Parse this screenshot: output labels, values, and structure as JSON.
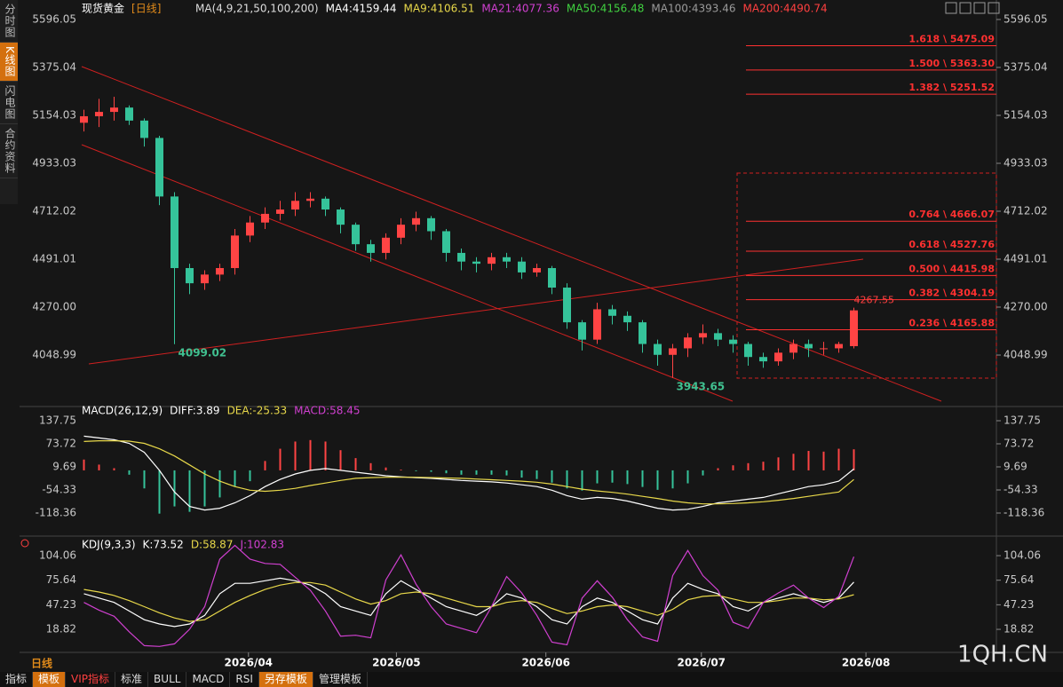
{
  "sidebar": [
    "分时图",
    "K线图",
    "闪电图",
    "合约资料"
  ],
  "period_label": "日线",
  "toolbar": [
    "指标",
    "模板",
    "VIP指标",
    "标准",
    "BULL",
    "MACD",
    "RSI",
    "另存模板",
    "管理模板"
  ],
  "watermark": "1QH.CN",
  "chart_data": [
    {
      "type": "candlestick",
      "title": "现货黄金",
      "period": "[日线]",
      "legend": [
        {
          "text": "MA(4,9,21,50,100,200)",
          "color": "#dddddd"
        },
        {
          "text": "MA4:4159.44",
          "color": "#ffffff"
        },
        {
          "text": "MA9:4106.51",
          "color": "#e8d84a"
        },
        {
          "text": "MA21:4077.36",
          "color": "#d040d0"
        },
        {
          "text": "MA50:4156.48",
          "color": "#40d040"
        },
        {
          "text": "MA100:4393.46",
          "color": "#9a9a9a"
        },
        {
          "text": "MA200:4490.74",
          "color": "#ff4040"
        }
      ],
      "up_color": "#ff4444",
      "down_color": "#35c39a",
      "open": [
        5120,
        5150,
        5170,
        5190,
        5130,
        5050,
        4780,
        4450,
        4380,
        4420,
        4450,
        4600,
        4660,
        4700,
        4720,
        4760,
        4770,
        4720,
        4650,
        4560,
        4520,
        4590,
        4650,
        4680,
        4620,
        4520,
        4480,
        4470,
        4500,
        4480,
        4430,
        4450,
        4360,
        4200,
        4120,
        4260,
        4230,
        4200,
        4100,
        4050,
        4080,
        4130,
        4150,
        4120,
        4100,
        4040,
        4020,
        4060,
        4100,
        4080,
        4080,
        4090
      ],
      "high": [
        5180,
        5230,
        5240,
        5200,
        5140,
        5060,
        4800,
        4470,
        4440,
        4470,
        4630,
        4690,
        4730,
        4760,
        4800,
        4800,
        4780,
        4730,
        4660,
        4580,
        4610,
        4680,
        4710,
        4690,
        4630,
        4540,
        4500,
        4520,
        4520,
        4500,
        4470,
        4460,
        4380,
        4210,
        4290,
        4280,
        4250,
        4210,
        4120,
        4100,
        4150,
        4190,
        4170,
        4140,
        4110,
        4060,
        4080,
        4120,
        4120,
        4110,
        4110,
        4267.55
      ],
      "low": [
        5080,
        5100,
        5130,
        5110,
        5010,
        4740,
        4099.02,
        4330,
        4350,
        4390,
        4420,
        4570,
        4630,
        4670,
        4690,
        4730,
        4690,
        4610,
        4530,
        4480,
        4490,
        4560,
        4620,
        4580,
        4480,
        4440,
        4430,
        4440,
        4450,
        4400,
        4410,
        4330,
        4170,
        4070,
        4100,
        4190,
        4160,
        4060,
        4000,
        3943.65,
        4040,
        4100,
        4090,
        4060,
        4000,
        3990,
        4000,
        4030,
        4040,
        4050,
        4060,
        4080
      ],
      "close": [
        5150,
        5170,
        5190,
        5130,
        5050,
        4780,
        4450,
        4380,
        4420,
        4450,
        4600,
        4660,
        4700,
        4720,
        4760,
        4770,
        4720,
        4650,
        4560,
        4520,
        4590,
        4650,
        4680,
        4620,
        4520,
        4480,
        4470,
        4500,
        4480,
        4430,
        4450,
        4360,
        4200,
        4120,
        4260,
        4230,
        4200,
        4100,
        4050,
        4080,
        4130,
        4150,
        4120,
        4100,
        4040,
        4020,
        4060,
        4100,
        4080,
        4080,
        4100,
        4255
      ],
      "xlim": [
        -3.5,
        60.5
      ],
      "xticks": [
        {
          "value": 10.9,
          "label": "2026/04"
        },
        {
          "value": 20.7,
          "label": "2026/05"
        },
        {
          "value": 30.6,
          "label": "2026/06"
        },
        {
          "value": 40.9,
          "label": "2026/07"
        },
        {
          "value": 51.8,
          "label": "2026/08"
        }
      ],
      "ylim": [
        3824,
        5645
      ],
      "yticks": [
        5596.05,
        5375.04,
        5154.03,
        4933.03,
        4712.02,
        4491.01,
        {
          "value": 4270,
          "label": "4270.00"
        },
        4048.99
      ],
      "fib_levels": {
        "color": "#ff3030",
        "values": [
          5475.09,
          5363.3,
          5251.52,
          4666.07,
          4527.76,
          4415.98,
          4304.19,
          4165.88
        ],
        "value_labels": [
          "1.618 \\ 5475.09",
          "1.500 \\ 5363.30",
          "1.382 \\ 5251.52",
          "0.764 \\ 4666.07",
          "0.618 \\ 4527.76",
          "0.500 \\ 4415.98",
          "0.382 \\ 4304.19",
          "0.236 \\ 4165.88"
        ]
      }
    },
    {
      "type": "macd",
      "title": "MACD(26,12,9)",
      "series": [
        {
          "name": "DIFF:3.89",
          "color": "#ffffff",
          "values": [
            95,
            90,
            85,
            75,
            50,
            0,
            -60,
            -100,
            -110,
            -105,
            -90,
            -70,
            -45,
            -25,
            -10,
            0,
            5,
            0,
            -5,
            -10,
            -15,
            -18,
            -20,
            -22,
            -25,
            -28,
            -30,
            -32,
            -35,
            -40,
            -45,
            -55,
            -70,
            -80,
            -75,
            -78,
            -85,
            -95,
            -105,
            -110,
            -108,
            -100,
            -90,
            -85,
            -80,
            -75,
            -65,
            -55,
            -45,
            -40,
            -30,
            3.89
          ]
        },
        {
          "name": "DEA:-25.33",
          "color": "#e8d84a",
          "values": [
            80,
            82,
            82,
            81,
            75,
            60,
            40,
            15,
            -10,
            -30,
            -45,
            -55,
            -58,
            -55,
            -50,
            -42,
            -35,
            -28,
            -22,
            -20,
            -19,
            -19,
            -19,
            -20,
            -21,
            -22,
            -24,
            -26,
            -28,
            -30,
            -33,
            -38,
            -45,
            -52,
            -57,
            -61,
            -66,
            -72,
            -78,
            -85,
            -90,
            -93,
            -93,
            -92,
            -90,
            -87,
            -83,
            -78,
            -72,
            -66,
            -60,
            -25.33
          ]
        }
      ],
      "histogram": {
        "name": "MACD:58.45",
        "color": "#d040d0",
        "up_color": "#ff4444",
        "down_color": "#35c39a",
        "values": [
          30,
          16,
          6,
          -12,
          -50,
          -120,
          -100,
          -115,
          -100,
          -75,
          -45,
          -30,
          26,
          60,
          80,
          84,
          80,
          56,
          34,
          20,
          8,
          2,
          -2,
          -4,
          -8,
          -12,
          -12,
          -12,
          -14,
          -20,
          -24,
          -34,
          -50,
          -56,
          -36,
          -34,
          -38,
          -46,
          -54,
          -50,
          -36,
          -14,
          6,
          14,
          20,
          24,
          36,
          46,
          54,
          52,
          60,
          58.45
        ]
      },
      "ylim": [
        -172.5,
        152.5
      ],
      "yticks": [
        137.75,
        73.72,
        9.69,
        -54.33,
        -118.36
      ]
    },
    {
      "type": "kdj",
      "title": "KDJ(9,3,3)",
      "series": [
        {
          "name": "K:73.52",
          "color": "#ffffff",
          "values": [
            60,
            55,
            50,
            40,
            30,
            25,
            22,
            25,
            35,
            60,
            72,
            72,
            75,
            78,
            75,
            70,
            60,
            45,
            40,
            35,
            60,
            75,
            65,
            55,
            45,
            40,
            35,
            45,
            60,
            55,
            45,
            30,
            25,
            45,
            55,
            50,
            40,
            30,
            25,
            55,
            72,
            65,
            60,
            45,
            40,
            50,
            55,
            60,
            55,
            50,
            55,
            73.52
          ]
        },
        {
          "name": "D:58.87",
          "color": "#e8d84a",
          "values": [
            65,
            62,
            58,
            52,
            45,
            38,
            32,
            28,
            30,
            40,
            50,
            58,
            65,
            70,
            73,
            73,
            70,
            62,
            54,
            48,
            52,
            60,
            62,
            60,
            55,
            50,
            45,
            45,
            50,
            52,
            50,
            43,
            37,
            40,
            45,
            47,
            45,
            40,
            35,
            42,
            53,
            57,
            58,
            54,
            50,
            50,
            52,
            55,
            55,
            53,
            54,
            58.87
          ]
        },
        {
          "name": "J:102.83",
          "color": "#d040d0",
          "values": [
            50,
            41,
            34,
            16,
            0,
            -1,
            2,
            19,
            45,
            100,
            116,
            100,
            95,
            94,
            79,
            64,
            40,
            11,
            12,
            9,
            76,
            105,
            71,
            45,
            25,
            20,
            15,
            45,
            80,
            61,
            35,
            4,
            1,
            55,
            75,
            56,
            30,
            10,
            5,
            81,
            110,
            81,
            64,
            27,
            20,
            50,
            61,
            70,
            55,
            44,
            57,
            102.83
          ]
        }
      ],
      "ylim": [
        -2.7,
        116.4
      ],
      "yticks": [
        104.06,
        75.64,
        47.23,
        18.82
      ]
    }
  ]
}
